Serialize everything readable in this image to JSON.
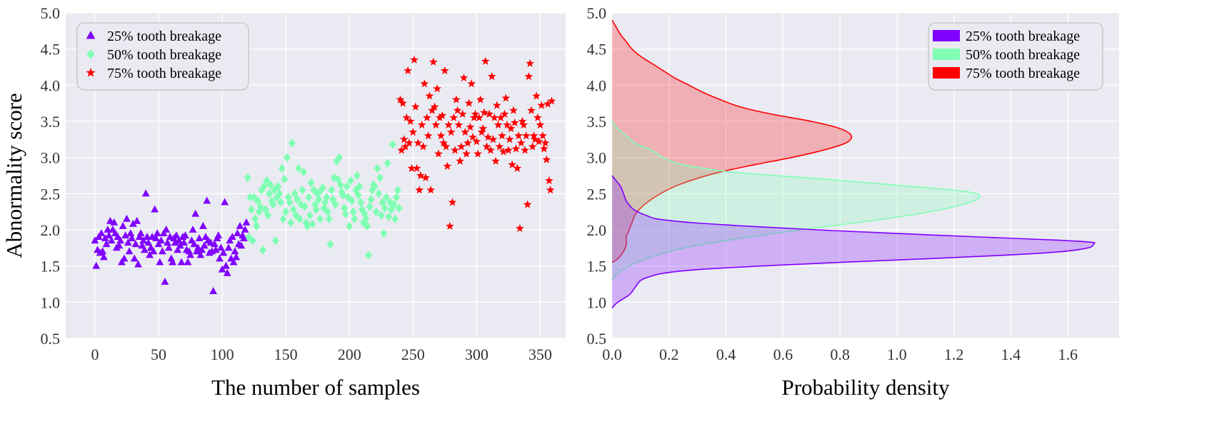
{
  "chart_data": [
    {
      "type": "scatter",
      "xlabel": "The number of samples",
      "ylabel": "Abnormality score",
      "xlim": [
        -23,
        370
      ],
      "ylim": [
        0.5,
        5.0
      ],
      "xticks": [
        0,
        50,
        100,
        150,
        200,
        250,
        300,
        350
      ],
      "xtick_labels": [
        "0",
        "50",
        "100",
        "150",
        "200",
        "250",
        "300",
        "350"
      ],
      "yticks": [
        0.5,
        1.0,
        1.5,
        2.0,
        2.5,
        3.0,
        3.5,
        4.0,
        4.5,
        5.0
      ],
      "ytick_labels": [
        "0.5",
        "1.0",
        "1.5",
        "2.0",
        "2.5",
        "3.0",
        "3.5",
        "4.0",
        "4.5",
        "5.0"
      ],
      "grid": true,
      "legend_position": "top-left",
      "series": [
        {
          "name": "25% tooth breakage",
          "marker": "triangle",
          "color": "#8000ff",
          "x": [
            0,
            1,
            2,
            3,
            4,
            5,
            6,
            7,
            8,
            9,
            10,
            11,
            12,
            13,
            14,
            15,
            16,
            17,
            18,
            19,
            20,
            21,
            22,
            23,
            24,
            25,
            26,
            27,
            28,
            29,
            30,
            31,
            32,
            33,
            34,
            35,
            36,
            37,
            38,
            39,
            40,
            41,
            42,
            43,
            44,
            45,
            46,
            47,
            48,
            49,
            50,
            51,
            52,
            53,
            54,
            55,
            56,
            57,
            58,
            59,
            60,
            61,
            62,
            63,
            64,
            65,
            66,
            67,
            68,
            69,
            70,
            71,
            72,
            73,
            74,
            75,
            76,
            77,
            78,
            79,
            80,
            81,
            82,
            83,
            84,
            85,
            86,
            87,
            88,
            89,
            90,
            91,
            92,
            93,
            94,
            95,
            96,
            97,
            98,
            99,
            100,
            101,
            102,
            103,
            104,
            105,
            106,
            107,
            108,
            109,
            110,
            111,
            112,
            113,
            114,
            115,
            116,
            117,
            118,
            119
          ],
          "y": [
            1.85,
            1.5,
            1.72,
            1.9,
            1.68,
            1.95,
            1.7,
            1.62,
            1.88,
            1.8,
            2.0,
            1.92,
            2.12,
            1.85,
            2.0,
            2.1,
            1.95,
            1.75,
            1.9,
            1.78,
            1.85,
            1.55,
            2.05,
            1.6,
            1.92,
            2.15,
            1.82,
            1.7,
            1.95,
            1.88,
            2.08,
            1.6,
            1.8,
            2.12,
            1.52,
            1.9,
            1.95,
            1.78,
            1.85,
            1.72,
            2.5,
            1.9,
            1.82,
            1.65,
            1.75,
            1.9,
            1.7,
            2.28,
            1.88,
            1.95,
            1.8,
            1.55,
            1.85,
            1.7,
            1.95,
            1.28,
            2.0,
            1.82,
            1.75,
            1.9,
            1.6,
            1.55,
            1.88,
            1.82,
            1.92,
            1.72,
            1.85,
            1.78,
            1.55,
            1.9,
            1.82,
            1.92,
            1.72,
            1.55,
            1.7,
            1.65,
            1.85,
            2.0,
            1.8,
            2.22,
            1.7,
            1.75,
            1.88,
            1.65,
            1.72,
            2.05,
            1.78,
            1.9,
            2.4,
            1.85,
            1.68,
            1.82,
            1.7,
            1.15,
            1.8,
            1.72,
            1.88,
            1.92,
            1.6,
            1.75,
            1.45,
            1.68,
            2.38,
            1.5,
            1.4,
            1.75,
            1.85,
            1.6,
            1.9,
            1.55,
            1.7,
            1.62,
            1.95,
            1.8,
            2.05,
            1.78,
            1.92,
            1.88,
            2.0,
            2.1
          ]
        },
        {
          "name": "50% tooth breakage",
          "marker": "diamond",
          "color": "#80ffb4",
          "x": [
            120,
            121,
            122,
            123,
            124,
            125,
            126,
            127,
            128,
            129,
            130,
            131,
            132,
            133,
            134,
            135,
            136,
            137,
            138,
            139,
            140,
            141,
            142,
            143,
            144,
            145,
            146,
            147,
            148,
            149,
            150,
            151,
            152,
            153,
            154,
            155,
            156,
            157,
            158,
            159,
            160,
            161,
            162,
            163,
            164,
            165,
            166,
            167,
            168,
            169,
            170,
            171,
            172,
            173,
            174,
            175,
            176,
            177,
            178,
            179,
            180,
            181,
            182,
            183,
            184,
            185,
            186,
            187,
            188,
            189,
            190,
            191,
            192,
            193,
            194,
            195,
            196,
            197,
            198,
            199,
            200,
            201,
            202,
            203,
            204,
            205,
            206,
            207,
            208,
            209,
            210,
            211,
            212,
            213,
            214,
            215,
            216,
            217,
            218,
            219,
            220,
            221,
            222,
            223,
            224,
            225,
            226,
            227,
            228,
            229,
            230,
            231,
            232,
            233,
            234,
            235,
            236,
            237,
            238,
            239
          ],
          "y": [
            2.72,
            1.9,
            2.45,
            2.28,
            1.85,
            2.45,
            2.15,
            2.05,
            2.4,
            2.25,
            2.32,
            2.55,
            1.72,
            2.6,
            2.28,
            2.68,
            2.2,
            2.5,
            2.62,
            2.4,
            2.35,
            2.55,
            1.85,
            2.45,
            2.6,
            2.5,
            2.38,
            2.85,
            2.15,
            2.7,
            2.25,
            3.0,
            2.45,
            2.38,
            2.1,
            3.2,
            2.28,
            2.5,
            2.2,
            2.42,
            2.85,
            2.15,
            2.35,
            2.55,
            2.8,
            2.32,
            2.1,
            2.05,
            2.45,
            2.2,
            2.65,
            2.08,
            2.55,
            2.35,
            2.28,
            2.5,
            2.42,
            2.15,
            2.55,
            2.58,
            2.3,
            2.38,
            2.45,
            2.25,
            2.15,
            1.8,
            2.55,
            2.42,
            2.72,
            2.35,
            2.95,
            2.7,
            3.0,
            2.62,
            2.52,
            2.48,
            2.3,
            2.22,
            2.6,
            2.45,
            2.05,
            2.68,
            2.4,
            2.25,
            2.15,
            2.55,
            2.75,
            2.48,
            2.6,
            2.38,
            2.28,
            2.1,
            2.22,
            2.15,
            2.05,
            1.65,
            2.32,
            2.42,
            2.55,
            2.62,
            2.6,
            2.25,
            2.85,
            2.5,
            2.72,
            2.2,
            2.38,
            1.95,
            2.3,
            2.45,
            2.92,
            2.18,
            2.38,
            2.28,
            3.18,
            2.35,
            2.15,
            2.45,
            2.55,
            2.3
          ]
        },
        {
          "name": "75% tooth breakage",
          "marker": "star",
          "color": "#ff0000",
          "x": [
            240,
            241,
            242,
            243,
            244,
            245,
            246,
            247,
            248,
            249,
            250,
            251,
            252,
            253,
            254,
            255,
            256,
            257,
            258,
            259,
            260,
            261,
            262,
            263,
            264,
            265,
            266,
            267,
            268,
            269,
            270,
            271,
            272,
            273,
            274,
            275,
            276,
            277,
            278,
            279,
            280,
            281,
            282,
            283,
            284,
            285,
            286,
            287,
            288,
            289,
            290,
            291,
            292,
            293,
            294,
            295,
            296,
            297,
            298,
            299,
            300,
            301,
            302,
            303,
            304,
            305,
            306,
            307,
            308,
            309,
            310,
            311,
            312,
            313,
            314,
            315,
            316,
            317,
            318,
            319,
            320,
            321,
            322,
            323,
            324,
            325,
            326,
            327,
            328,
            329,
            330,
            331,
            332,
            333,
            334,
            335,
            336,
            337,
            338,
            339,
            340,
            341,
            342,
            343,
            344,
            345,
            346,
            347,
            348,
            349,
            350,
            351,
            352,
            353,
            354,
            355,
            356,
            357,
            358,
            359
          ],
          "y": [
            3.8,
            3.1,
            3.75,
            3.25,
            3.15,
            3.55,
            4.2,
            3.2,
            3.5,
            2.85,
            3.35,
            4.35,
            3.7,
            2.85,
            3.2,
            2.55,
            2.75,
            3.45,
            3.15,
            4.02,
            2.72,
            3.55,
            3.3,
            3.85,
            2.55,
            3.65,
            4.32,
            3.7,
            3.45,
            3.95,
            3.05,
            3.55,
            3.3,
            3.58,
            3.2,
            4.2,
            3.15,
            2.88,
            3.45,
            2.05,
            3.35,
            2.38,
            3.55,
            3.1,
            3.8,
            3.65,
            3.45,
            2.95,
            3.15,
            3.6,
            4.1,
            3.35,
            3.05,
            3.2,
            3.75,
            3.42,
            4.02,
            3.28,
            3.55,
            3.6,
            3.22,
            3.05,
            3.55,
            3.8,
            3.35,
            3.4,
            3.62,
            4.33,
            3.15,
            3.28,
            3.6,
            3.1,
            4.12,
            3.25,
            3.55,
            2.95,
            3.72,
            3.45,
            3.15,
            3.55,
            3.3,
            3.08,
            3.6,
            3.82,
            3.45,
            3.1,
            3.25,
            3.4,
            2.9,
            3.65,
            3.48,
            3.12,
            2.85,
            3.3,
            2.02,
            3.2,
            3.5,
            3.45,
            3.1,
            3.3,
            2.35,
            4.12,
            4.3,
            3.65,
            3.15,
            3.3,
            3.25,
            3.85,
            3.55,
            3.22,
            3.45,
            3.72,
            3.3,
            3.12,
            3.2,
            2.97,
            3.74,
            2.68,
            2.55,
            3.78
          ]
        }
      ]
    },
    {
      "type": "area",
      "orientation": "horizontal-density",
      "xlabel": "Probability density",
      "ylabel": "",
      "xlim": [
        0.0,
        1.78
      ],
      "ylim": [
        0.5,
        5.0
      ],
      "xticks": [
        0.0,
        0.2,
        0.4,
        0.6,
        0.8,
        1.0,
        1.2,
        1.4,
        1.6
      ],
      "xtick_labels": [
        "0.0",
        "0.2",
        "0.4",
        "0.6",
        "0.8",
        "1.0",
        "1.2",
        "1.4",
        "1.6"
      ],
      "yticks": [
        0.5,
        1.0,
        1.5,
        2.0,
        2.5,
        3.0,
        3.5,
        4.0,
        4.5,
        5.0
      ],
      "ytick_labels": [
        "0.5",
        "1.0",
        "1.5",
        "2.0",
        "2.5",
        "3.0",
        "3.5",
        "4.0",
        "4.5",
        "5.0"
      ],
      "grid": true,
      "legend_position": "top-right",
      "series": [
        {
          "name": "25% tooth breakage",
          "color": "#8000ff",
          "score": [
            0.92,
            1.0,
            1.1,
            1.2,
            1.3,
            1.35,
            1.4,
            1.45,
            1.5,
            1.55,
            1.6,
            1.65,
            1.7,
            1.75,
            1.8,
            1.83,
            1.86,
            1.9,
            1.95,
            2.0,
            2.05,
            2.1,
            2.15,
            2.2,
            2.25,
            2.3,
            2.4,
            2.5,
            2.6,
            2.7,
            2.75
          ],
          "density": [
            0.0,
            0.02,
            0.06,
            0.08,
            0.1,
            0.13,
            0.18,
            0.3,
            0.52,
            0.8,
            1.1,
            1.38,
            1.58,
            1.67,
            1.69,
            1.68,
            1.55,
            1.3,
            1.0,
            0.72,
            0.48,
            0.28,
            0.16,
            0.12,
            0.09,
            0.07,
            0.05,
            0.04,
            0.03,
            0.01,
            0.0
          ]
        },
        {
          "name": "50% tooth breakage",
          "color": "#80ffb4",
          "score": [
            1.3,
            1.4,
            1.5,
            1.6,
            1.7,
            1.8,
            1.9,
            2.0,
            2.1,
            2.2,
            2.3,
            2.4,
            2.45,
            2.5,
            2.55,
            2.6,
            2.7,
            2.8,
            2.9,
            3.0,
            3.1,
            3.2,
            3.3,
            3.4,
            3.5
          ],
          "density": [
            0.0,
            0.02,
            0.06,
            0.12,
            0.2,
            0.32,
            0.48,
            0.66,
            0.86,
            1.04,
            1.18,
            1.27,
            1.29,
            1.28,
            1.2,
            1.05,
            0.75,
            0.42,
            0.25,
            0.18,
            0.14,
            0.08,
            0.05,
            0.02,
            0.0
          ]
        },
        {
          "name": "75% tooth breakage",
          "color": "#ff0000",
          "score": [
            1.55,
            1.6,
            1.7,
            1.8,
            1.9,
            2.0,
            2.1,
            2.2,
            2.3,
            2.4,
            2.5,
            2.6,
            2.7,
            2.8,
            2.9,
            3.0,
            3.1,
            3.2,
            3.3,
            3.4,
            3.5,
            3.6,
            3.7,
            3.8,
            3.9,
            4.0,
            4.1,
            4.2,
            4.3,
            4.4,
            4.5,
            4.6,
            4.7,
            4.8,
            4.9
          ],
          "density": [
            0.0,
            0.02,
            0.04,
            0.05,
            0.05,
            0.06,
            0.07,
            0.08,
            0.1,
            0.13,
            0.17,
            0.22,
            0.29,
            0.38,
            0.5,
            0.63,
            0.74,
            0.82,
            0.84,
            0.8,
            0.7,
            0.56,
            0.45,
            0.38,
            0.32,
            0.27,
            0.22,
            0.18,
            0.14,
            0.1,
            0.07,
            0.05,
            0.03,
            0.015,
            0.0
          ]
        }
      ]
    }
  ]
}
